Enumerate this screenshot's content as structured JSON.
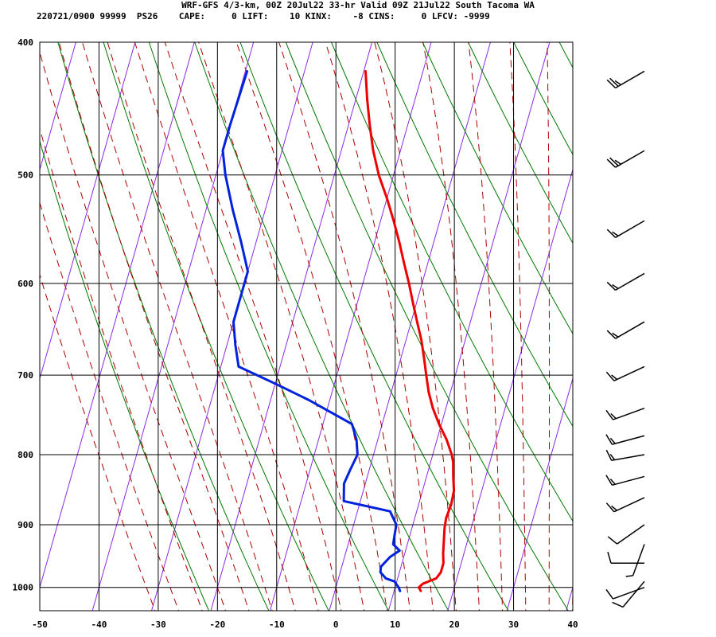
{
  "chart_data": {
    "type": "line",
    "title": "WRF-GFS 4/3-km, 00Z 20Jul22 33-hr Valid 09Z 21Jul22 South Tacoma WA",
    "stats": {
      "id": "220721/0900 99999",
      "station": "PS26",
      "cape_label": "CAPE:",
      "cape": "0",
      "lift_label": "LIFT:",
      "lift": "10",
      "kinx_label": "KINX:",
      "kinx": "-8",
      "cins_label": "CINS:",
      "cins": "0",
      "lfcv_label": "LFCV:",
      "lfcv": "-9999"
    },
    "x_ticks": [
      -50,
      -40,
      -30,
      -20,
      -10,
      0,
      10,
      20,
      30,
      40
    ],
    "y_ticks": [
      400,
      500,
      600,
      700,
      800,
      900,
      1000
    ],
    "xlim": [
      -50,
      40
    ],
    "ylim": [
      1040,
      400
    ],
    "grid": true,
    "colors": {
      "temperature": "#ee0000",
      "dewpoint": "#0022dd",
      "dry_adiabat": "#007700",
      "moist_adiabat": "#aa0000",
      "isotherm": "#8a2be2",
      "grid": "#000000"
    },
    "series": [
      {
        "values": [
          [
            1006,
            14.5
          ],
          [
            1000,
            14.0
          ],
          [
            994,
            14.5
          ],
          [
            985,
            16.5
          ],
          [
            975,
            17.0
          ],
          [
            960,
            17.0
          ],
          [
            945,
            16.5
          ],
          [
            925,
            16.0
          ],
          [
            905,
            15.5
          ],
          [
            890,
            15.3
          ],
          [
            870,
            15.5
          ],
          [
            850,
            15.3
          ],
          [
            830,
            14.5
          ],
          [
            810,
            13.8
          ],
          [
            800,
            13.2
          ],
          [
            780,
            11.6
          ],
          [
            760,
            9.6
          ],
          [
            740,
            7.8
          ],
          [
            720,
            6.3
          ],
          [
            700,
            5.1
          ],
          [
            680,
            3.9
          ],
          [
            660,
            2.6
          ],
          [
            640,
            1.0
          ],
          [
            620,
            -0.6
          ],
          [
            600,
            -2.2
          ],
          [
            580,
            -4.0
          ],
          [
            560,
            -5.8
          ],
          [
            540,
            -7.8
          ],
          [
            520,
            -10.0
          ],
          [
            500,
            -12.5
          ],
          [
            480,
            -14.6
          ],
          [
            460,
            -16.4
          ],
          [
            440,
            -18.1
          ],
          [
            420,
            -19.7
          ]
        ]
      },
      {
        "values": [
          [
            1006,
            11.0
          ],
          [
            1000,
            10.6
          ],
          [
            990,
            9.6
          ],
          [
            985,
            8.0
          ],
          [
            975,
            6.8
          ],
          [
            966,
            6.6
          ],
          [
            950,
            7.7
          ],
          [
            940,
            9.0
          ],
          [
            930,
            7.6
          ],
          [
            915,
            7.4
          ],
          [
            900,
            7.2
          ],
          [
            880,
            5.5
          ],
          [
            865,
            -2.8
          ],
          [
            840,
            -3.6
          ],
          [
            820,
            -3.2
          ],
          [
            800,
            -2.7
          ],
          [
            780,
            -3.6
          ],
          [
            760,
            -5.1
          ],
          [
            730,
            -13.5
          ],
          [
            710,
            -20.0
          ],
          [
            690,
            -27.0
          ],
          [
            665,
            -28.6
          ],
          [
            640,
            -30.0
          ],
          [
            620,
            -30.0
          ],
          [
            600,
            -30.0
          ],
          [
            588,
            -30.0
          ],
          [
            560,
            -32.5
          ],
          [
            530,
            -35.5
          ],
          [
            500,
            -38.4
          ],
          [
            480,
            -40.0
          ],
          [
            460,
            -40.0
          ],
          [
            420,
            -39.7
          ]
        ]
      }
    ],
    "wind_barbs": [
      {
        "p": 420,
        "dir": 240,
        "spd": 25
      },
      {
        "p": 480,
        "dir": 240,
        "spd": 25
      },
      {
        "p": 540,
        "dir": 240,
        "spd": 15
      },
      {
        "p": 590,
        "dir": 240,
        "spd": 15
      },
      {
        "p": 640,
        "dir": 240,
        "spd": 15
      },
      {
        "p": 690,
        "dir": 245,
        "spd": 15
      },
      {
        "p": 740,
        "dir": 250,
        "spd": 15
      },
      {
        "p": 775,
        "dir": 255,
        "spd": 15
      },
      {
        "p": 800,
        "dir": 260,
        "spd": 15
      },
      {
        "p": 830,
        "dir": 255,
        "spd": 15
      },
      {
        "p": 860,
        "dir": 245,
        "spd": 15
      },
      {
        "p": 900,
        "dir": 235,
        "spd": 10
      },
      {
        "p": 930,
        "dir": 200,
        "spd": 5
      },
      {
        "p": 960,
        "dir": 270,
        "spd": 10
      },
      {
        "p": 990,
        "dir": 220,
        "spd": 10
      },
      {
        "p": 1000,
        "dir": 250,
        "spd": 10
      }
    ]
  }
}
